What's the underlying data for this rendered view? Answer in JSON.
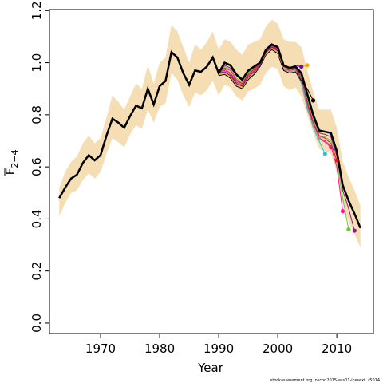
{
  "chart_data": {
    "type": "line",
    "xlabel": "Year",
    "ylabel": "F",
    "ylabel_sub": "2−4",
    "footnote": "stockassessment.org, nscod2015-ass01-icesext. r5014",
    "xlim": [
      1961.35,
      2016.2
    ],
    "ylim": [
      -0.04,
      1.204
    ],
    "xticks": [
      1970,
      1980,
      1990,
      2000,
      2010
    ],
    "yticks": [
      {
        "value": 0,
        "label": "0.0"
      },
      0.2,
      0.4,
      0.6,
      0.8,
      {
        "value": 1,
        "label": "1.0"
      },
      1.2
    ],
    "x": [
      1963,
      1964,
      1965,
      1966,
      1967,
      1968,
      1969,
      1970,
      1971,
      1972,
      1973,
      1974,
      1975,
      1976,
      1977,
      1978,
      1979,
      1980,
      1981,
      1982,
      1983,
      1984,
      1985,
      1986,
      1987,
      1988,
      1989,
      1990,
      1991,
      1992,
      1993,
      1994,
      1995,
      1996,
      1997,
      1998,
      1999,
      2000,
      2001,
      2002,
      2003,
      2004,
      2005,
      2006,
      2007,
      2008,
      2009,
      2010,
      2011,
      2012,
      2013,
      2014
    ],
    "band_color": "#f5deb3",
    "band_lower": [
      0.41,
      0.46,
      0.5,
      0.51,
      0.55,
      0.575,
      0.555,
      0.58,
      0.65,
      0.71,
      0.695,
      0.675,
      0.725,
      0.76,
      0.745,
      0.82,
      0.77,
      0.83,
      0.845,
      0.96,
      0.935,
      0.875,
      0.83,
      0.885,
      0.875,
      0.895,
      0.93,
      0.875,
      0.915,
      0.905,
      0.87,
      0.855,
      0.89,
      0.9,
      0.915,
      0.96,
      0.985,
      0.975,
      0.91,
      0.895,
      0.905,
      0.87,
      0.8,
      0.73,
      0.67,
      0.66,
      0.65,
      0.58,
      0.46,
      0.39,
      0.34,
      0.29
    ],
    "band_upper": [
      0.52,
      0.58,
      0.62,
      0.64,
      0.69,
      0.72,
      0.69,
      0.71,
      0.79,
      0.875,
      0.85,
      0.82,
      0.87,
      0.92,
      0.9,
      0.99,
      0.92,
      1.0,
      1.02,
      1.145,
      1.12,
      1.06,
      1.0,
      1.07,
      1.05,
      1.08,
      1.12,
      1.05,
      1.09,
      1.08,
      1.05,
      1.03,
      1.07,
      1.08,
      1.09,
      1.14,
      1.165,
      1.15,
      1.09,
      1.08,
      1.08,
      1.06,
      0.97,
      0.89,
      0.82,
      0.82,
      0.82,
      0.75,
      0.62,
      0.56,
      0.51,
      0.45
    ],
    "color": "#000000",
    "values": [
      0.48,
      0.52,
      0.555,
      0.57,
      0.615,
      0.645,
      0.625,
      0.645,
      0.72,
      0.785,
      0.77,
      0.75,
      0.795,
      0.835,
      0.825,
      0.9,
      0.84,
      0.91,
      0.93,
      1.04,
      1.02,
      0.96,
      0.915,
      0.97,
      0.965,
      0.985,
      1.02,
      0.96,
      1.0,
      0.99,
      0.955,
      0.935,
      0.97,
      0.985,
      1.0,
      1.05,
      1.07,
      1.06,
      0.99,
      0.98,
      0.985,
      0.96,
      0.88,
      0.8,
      0.74,
      0.735,
      0.73,
      0.66,
      0.53,
      0.47,
      0.42,
      0.365
    ],
    "series": [
      {
        "color": "#8b1a8b",
        "x": [
          1990,
          1991,
          1992,
          1993,
          1994,
          1995,
          1996,
          1997,
          1998,
          1999,
          2000,
          2001,
          2002,
          2003,
          2004,
          2005,
          2006,
          2007,
          2008,
          2009,
          2010,
          2011,
          2012,
          2013
        ],
        "values": [
          0.955,
          0.99,
          0.98,
          0.95,
          0.93,
          0.965,
          0.98,
          1.0,
          1.045,
          1.065,
          1.055,
          0.985,
          0.975,
          0.98,
          0.95,
          0.87,
          0.79,
          0.73,
          0.725,
          0.715,
          0.64,
          0.51,
          0.44,
          0.355
        ]
      },
      {
        "color": "#66cc33",
        "x": [
          1990,
          1991,
          1992,
          1993,
          1994,
          1995,
          1996,
          1997,
          1998,
          1999,
          2000,
          2001,
          2002,
          2003,
          2004,
          2005,
          2006,
          2007,
          2008,
          2009,
          2010,
          2011,
          2012
        ],
        "values": [
          0.95,
          0.985,
          0.975,
          0.94,
          0.925,
          0.96,
          0.98,
          0.995,
          1.04,
          1.06,
          1.05,
          0.98,
          0.97,
          0.975,
          0.945,
          0.86,
          0.78,
          0.72,
          0.715,
          0.7,
          0.62,
          0.48,
          0.36
        ]
      },
      {
        "color": "#ff1493",
        "x": [
          1990,
          1991,
          1992,
          1993,
          1994,
          1995,
          1996,
          1997,
          1998,
          1999,
          2000,
          2001,
          2002,
          2003,
          2004,
          2005,
          2006,
          2007,
          2008,
          2009,
          2010,
          2011
        ],
        "values": [
          0.96,
          0.98,
          0.97,
          0.935,
          0.92,
          0.955,
          0.975,
          0.995,
          1.04,
          1.06,
          1.05,
          0.98,
          0.97,
          0.975,
          0.94,
          0.85,
          0.77,
          0.71,
          0.7,
          0.68,
          0.6,
          0.43
        ]
      },
      {
        "color": "#e41a1c",
        "x": [
          1990,
          1991,
          1992,
          1993,
          1994,
          1995,
          1996,
          1997,
          1998,
          1999,
          2000,
          2001,
          2002,
          2003,
          2004,
          2005,
          2006,
          2007,
          2008,
          2009,
          2010
        ],
        "values": [
          0.97,
          0.975,
          0.96,
          0.93,
          0.92,
          0.955,
          0.975,
          1.0,
          1.045,
          1.065,
          1.05,
          0.985,
          0.975,
          0.98,
          0.94,
          0.85,
          0.77,
          0.72,
          0.71,
          0.69,
          0.625
        ]
      },
      {
        "color": "#d62770",
        "x": [
          1990,
          1991,
          1992,
          1993,
          1994,
          1995,
          1996,
          1997,
          1998,
          1999,
          2000,
          2001,
          2002,
          2003,
          2004,
          2005,
          2006,
          2007,
          2008,
          2009
        ],
        "values": [
          0.965,
          0.97,
          0.955,
          0.925,
          0.915,
          0.95,
          0.97,
          0.995,
          1.04,
          1.06,
          1.045,
          0.98,
          0.97,
          0.975,
          0.935,
          0.84,
          0.76,
          0.71,
          0.695,
          0.675
        ]
      },
      {
        "color": "#22c5e0",
        "x": [
          1990,
          1991,
          1992,
          1993,
          1994,
          1995,
          1996,
          1997,
          1998,
          1999,
          2000,
          2001,
          2002,
          2003,
          2004,
          2005,
          2006,
          2007,
          2008
        ],
        "values": [
          0.96,
          0.965,
          0.95,
          0.92,
          0.91,
          0.945,
          0.965,
          0.99,
          1.035,
          1.055,
          1.04,
          0.975,
          0.965,
          0.97,
          0.93,
          0.83,
          0.75,
          0.7,
          0.65
        ]
      },
      {
        "color": "#999999",
        "x": [
          1990,
          1991,
          1992,
          1993,
          1994,
          1995,
          1996,
          1997,
          1998,
          1999,
          2000,
          2001,
          2002,
          2003,
          2004,
          2005,
          2006,
          2007
        ],
        "values": [
          0.955,
          0.96,
          0.945,
          0.915,
          0.905,
          0.94,
          0.96,
          0.99,
          1.035,
          1.055,
          1.04,
          0.975,
          0.965,
          0.97,
          0.92,
          0.82,
          0.76,
          0.71
        ]
      },
      {
        "color": "#000000",
        "x": [
          1990,
          1991,
          1992,
          1993,
          1994,
          1995,
          1996,
          1997,
          1998,
          1999,
          2000,
          2001,
          2002,
          2003,
          2004,
          2005,
          2006
        ],
        "values": [
          0.95,
          0.955,
          0.94,
          0.91,
          0.9,
          0.935,
          0.955,
          0.985,
          1.03,
          1.05,
          1.035,
          0.97,
          0.96,
          0.965,
          0.93,
          0.9,
          0.855
        ]
      },
      {
        "color": "#ffa500",
        "x": [
          1990,
          1991,
          1992,
          1993,
          1994,
          1995,
          1996,
          1997,
          1998,
          1999,
          2000,
          2001,
          2002,
          2003,
          2004,
          2005
        ],
        "values": [
          0.955,
          0.96,
          0.945,
          0.915,
          0.905,
          0.94,
          0.96,
          0.99,
          1.035,
          1.055,
          1.04,
          0.98,
          0.975,
          0.985,
          0.985,
          0.99
        ]
      },
      {
        "color": "#6a0dad",
        "x": [
          1990,
          1991,
          1992,
          1993,
          1994,
          1995,
          1996,
          1997,
          1998,
          1999,
          2000,
          2001,
          2002,
          2003,
          2004
        ],
        "values": [
          0.96,
          0.965,
          0.95,
          0.92,
          0.91,
          0.945,
          0.965,
          0.99,
          1.04,
          1.06,
          1.045,
          0.985,
          0.98,
          0.99,
          0.985
        ]
      }
    ]
  }
}
